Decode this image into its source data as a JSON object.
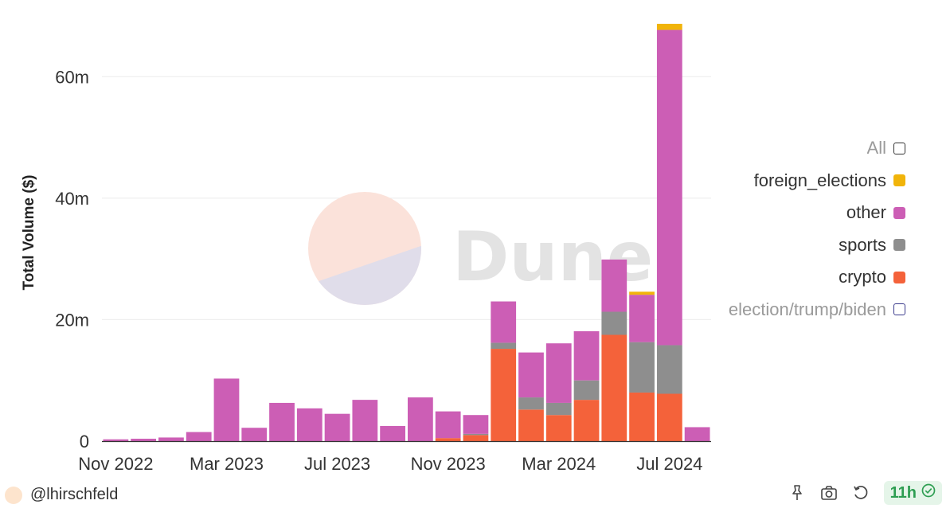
{
  "chart_data": {
    "type": "bar",
    "stacked": true,
    "title": "",
    "xlabel": "",
    "ylabel": "Total Volume ($)",
    "ylim": [
      0,
      70000000
    ],
    "yticks": [
      0,
      20000000,
      40000000,
      60000000
    ],
    "ytick_labels": [
      "0",
      "20m",
      "40m",
      "60m"
    ],
    "grid": true,
    "legend_position": "right",
    "x_tick_labels": [
      "Nov 2022",
      "Mar 2023",
      "Jul 2023",
      "Nov 2023",
      "Mar 2024",
      "Jul 2024"
    ],
    "x_tick_categories": [
      "2022-11",
      "2023-03",
      "2023-07",
      "2023-11",
      "2024-03",
      "2024-07"
    ],
    "categories": [
      "2022-11",
      "2022-12",
      "2023-01",
      "2023-02",
      "2023-03",
      "2023-04",
      "2023-05",
      "2023-06",
      "2023-07",
      "2023-08",
      "2023-09",
      "2023-10",
      "2023-11",
      "2023-12",
      "2024-01",
      "2024-02",
      "2024-03",
      "2024-04",
      "2024-05",
      "2024-06",
      "2024-07",
      "2024-08"
    ],
    "series": [
      {
        "name": "crypto",
        "color": "#f4623a",
        "values": [
          0,
          0,
          0,
          0,
          0,
          0,
          0,
          0,
          0,
          0,
          0,
          0,
          0.5,
          1.0,
          15.2,
          5.2,
          4.3,
          6.8,
          17.5,
          8.0,
          7.8,
          0
        ]
      },
      {
        "name": "sports",
        "color": "#8e8e8e",
        "values": [
          0,
          0,
          0,
          0,
          0,
          0,
          0,
          0,
          0,
          0,
          0,
          0,
          0,
          0.2,
          1.0,
          2.0,
          2.0,
          3.2,
          3.8,
          8.3,
          8.0,
          0
        ]
      },
      {
        "name": "other",
        "color": "#cc5eb5",
        "values": [
          0.3,
          0.4,
          0.6,
          1.5,
          10.3,
          2.2,
          6.3,
          5.4,
          4.5,
          6.8,
          2.5,
          7.2,
          4.4,
          3.1,
          6.8,
          7.4,
          9.8,
          8.1,
          8.6,
          7.8,
          51.9,
          2.3
        ]
      },
      {
        "name": "foreign_elections",
        "color": "#f1b40a",
        "values": [
          0,
          0,
          0,
          0,
          0,
          0,
          0,
          0,
          0,
          0,
          0,
          0,
          0,
          0,
          0,
          0,
          0,
          0,
          0,
          0.5,
          1.0,
          0
        ]
      }
    ],
    "series_unit": "millions of USD"
  },
  "legend": {
    "items": [
      {
        "label": "All",
        "color": "#ffffff",
        "border": "#333333",
        "active": false
      },
      {
        "label": "foreign_elections",
        "color": "#f1b40a",
        "border": "#f1b40a",
        "active": true
      },
      {
        "label": "other",
        "color": "#cc5eb5",
        "border": "#cc5eb5",
        "active": true
      },
      {
        "label": "sports",
        "color": "#8e8e8e",
        "border": "#8e8e8e",
        "active": true
      },
      {
        "label": "crypto",
        "color": "#f4623a",
        "border": "#f4623a",
        "active": true
      },
      {
        "label": "election/trump/biden",
        "color": "#ffffff",
        "border": "#3a3a8c",
        "active": false
      }
    ]
  },
  "watermark": {
    "text": "Dune"
  },
  "footer": {
    "author": "@lhirschfeld",
    "refresh_label": "11h",
    "icons": [
      "pin-icon",
      "camera-icon",
      "refresh-icon"
    ]
  }
}
